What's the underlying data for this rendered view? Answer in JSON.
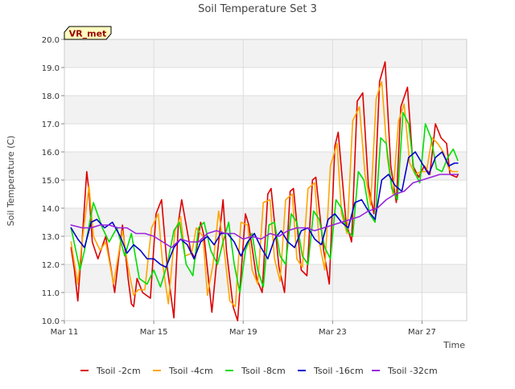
{
  "chart_data": {
    "type": "line",
    "title": "Soil Temperature Set 3",
    "xlabel": "Time",
    "ylabel": "Soil Temperature (C)",
    "site_label": "VR_met",
    "ylim": [
      10.0,
      20.0
    ],
    "xlim": [
      0,
      18
    ],
    "yticks": [
      "10.0",
      "11.0",
      "12.0",
      "13.0",
      "14.0",
      "15.0",
      "16.0",
      "17.0",
      "18.0",
      "19.0",
      "20.0"
    ],
    "xticks": [
      {
        "label": "Mar 11",
        "value": 0
      },
      {
        "label": "Mar 15",
        "value": 4
      },
      {
        "label": "Mar 19",
        "value": 8
      },
      {
        "label": "Mar 23",
        "value": 12
      },
      {
        "label": "Mar 27",
        "value": 16
      }
    ],
    "grid": true,
    "alternating_bands": true,
    "legend_position": "bottom",
    "series": [
      {
        "name": "Tsoil -2cm",
        "color": "#dd0000",
        "x": [
          0.3,
          0.45,
          0.6,
          0.75,
          1.0,
          1.1,
          1.25,
          1.5,
          1.85,
          2.1,
          2.25,
          2.6,
          2.85,
          3.0,
          3.1,
          3.25,
          3.5,
          3.85,
          4.1,
          4.35,
          4.6,
          4.9,
          5.1,
          5.25,
          5.65,
          5.85,
          6.1,
          6.25,
          6.6,
          6.85,
          7.1,
          7.25,
          7.55,
          7.75,
          8.1,
          8.25,
          8.6,
          8.85,
          9.1,
          9.25,
          9.6,
          9.85,
          10.1,
          10.25,
          10.6,
          10.85,
          11.1,
          11.25,
          11.6,
          11.85,
          12.1,
          12.25,
          12.6,
          12.85,
          13.1,
          13.35,
          13.6,
          13.85,
          14.1,
          14.35,
          14.6,
          14.85,
          15.05,
          15.35,
          15.6,
          15.85,
          16.1,
          16.35,
          16.6,
          16.85,
          17.1,
          17.25,
          17.55,
          17.62
        ],
        "y": [
          12.6,
          11.8,
          10.7,
          12.3,
          15.3,
          14.6,
          12.8,
          12.2,
          13.0,
          11.8,
          11.0,
          13.4,
          11.5,
          10.6,
          10.5,
          11.5,
          11.0,
          10.8,
          13.8,
          14.3,
          11.9,
          10.1,
          13.5,
          14.3,
          12.5,
          12.2,
          13.5,
          13.0,
          10.3,
          12.4,
          14.3,
          12.5,
          10.5,
          10.0,
          13.8,
          13.4,
          11.5,
          11.0,
          14.5,
          14.7,
          11.9,
          11.0,
          14.6,
          14.7,
          11.8,
          11.6,
          15.0,
          15.1,
          12.5,
          11.3,
          16.2,
          16.7,
          13.5,
          12.8,
          17.8,
          18.1,
          14.8,
          13.8,
          18.5,
          19.2,
          15.5,
          14.2,
          17.6,
          18.3,
          15.5,
          15.1,
          15.5,
          15.2,
          17.0,
          16.5,
          16.3,
          15.2,
          15.1,
          15.2
        ]
      },
      {
        "name": "Tsoil -4cm",
        "color": "#ffa500",
        "x": [
          0.3,
          0.6,
          0.75,
          1.1,
          1.3,
          1.6,
          1.85,
          2.2,
          2.6,
          2.85,
          3.1,
          3.3,
          3.6,
          3.9,
          4.2,
          4.4,
          4.65,
          4.95,
          5.2,
          5.4,
          5.7,
          5.9,
          6.2,
          6.4,
          6.65,
          6.9,
          7.15,
          7.4,
          7.65,
          7.9,
          8.2,
          8.4,
          8.65,
          8.9,
          9.2,
          9.4,
          9.65,
          9.9,
          10.2,
          10.4,
          10.65,
          10.9,
          11.2,
          11.4,
          11.65,
          11.9,
          12.2,
          12.4,
          12.65,
          12.9,
          13.2,
          13.45,
          13.7,
          13.95,
          14.2,
          14.45,
          14.7,
          14.95,
          15.2,
          15.45,
          15.7,
          15.95,
          16.2,
          16.45,
          16.7,
          16.95,
          17.2,
          17.35,
          17.6
        ],
        "y": [
          12.8,
          11.3,
          12.5,
          14.8,
          13.0,
          12.5,
          12.8,
          11.3,
          13.2,
          11.9,
          10.9,
          11.1,
          11.1,
          13.3,
          13.8,
          12.0,
          10.6,
          13.2,
          13.7,
          12.3,
          12.4,
          13.3,
          13.0,
          10.9,
          12.0,
          13.9,
          12.5,
          10.7,
          10.5,
          13.5,
          13.4,
          11.8,
          11.3,
          14.2,
          14.3,
          12.2,
          11.4,
          14.3,
          14.5,
          12.2,
          11.9,
          14.7,
          14.9,
          12.8,
          11.8,
          15.5,
          16.3,
          13.8,
          13.1,
          17.1,
          17.6,
          15.2,
          14.1,
          17.9,
          18.5,
          15.8,
          14.5,
          17.1,
          17.7,
          15.6,
          15.2,
          15.3,
          15.3,
          16.5,
          16.3,
          16.0,
          15.4,
          15.3,
          15.3
        ]
      },
      {
        "name": "Tsoil -8cm",
        "color": "#00dd00",
        "x": [
          0.3,
          0.7,
          0.9,
          1.3,
          1.7,
          2.0,
          2.35,
          2.7,
          3.0,
          3.35,
          3.7,
          4.0,
          4.3,
          4.6,
          4.9,
          5.15,
          5.45,
          5.75,
          6.0,
          6.25,
          6.55,
          6.85,
          7.1,
          7.35,
          7.6,
          7.85,
          8.1,
          8.4,
          8.65,
          8.9,
          9.15,
          9.4,
          9.65,
          9.9,
          10.15,
          10.4,
          10.65,
          10.9,
          11.15,
          11.4,
          11.65,
          11.9,
          12.15,
          12.4,
          12.65,
          12.9,
          13.15,
          13.4,
          13.65,
          13.9,
          14.15,
          14.4,
          14.65,
          14.9,
          15.15,
          15.4,
          15.65,
          15.9,
          16.15,
          16.4,
          16.65,
          16.9,
          17.15,
          17.4,
          17.6
        ],
        "y": [
          13.3,
          11.8,
          12.5,
          14.2,
          13.3,
          12.8,
          13.3,
          12.3,
          13.1,
          11.5,
          11.3,
          11.8,
          11.2,
          12.0,
          13.2,
          13.5,
          12.0,
          11.6,
          13.3,
          13.5,
          12.5,
          12.0,
          12.8,
          13.5,
          12.0,
          11.0,
          12.5,
          13.1,
          11.8,
          11.2,
          13.4,
          13.5,
          12.3,
          12.0,
          13.8,
          13.5,
          12.3,
          12.0,
          13.9,
          13.6,
          12.6,
          12.2,
          14.3,
          14.0,
          13.2,
          13.0,
          15.3,
          15.0,
          13.8,
          13.5,
          16.5,
          16.3,
          14.7,
          14.3,
          17.4,
          17.0,
          15.3,
          14.9,
          17.0,
          16.5,
          15.4,
          15.3,
          15.8,
          16.1,
          15.7
        ]
      },
      {
        "name": "Tsoil -16cm",
        "color": "#0000cc",
        "x": [
          0.3,
          0.6,
          0.9,
          1.2,
          1.45,
          1.8,
          2.15,
          2.5,
          2.8,
          3.1,
          3.4,
          3.7,
          4.0,
          4.3,
          4.55,
          4.9,
          5.2,
          5.5,
          5.8,
          6.1,
          6.4,
          6.7,
          7.0,
          7.3,
          7.6,
          7.9,
          8.2,
          8.5,
          8.8,
          9.1,
          9.4,
          9.7,
          10.0,
          10.3,
          10.6,
          10.9,
          11.2,
          11.5,
          11.8,
          12.1,
          12.4,
          12.7,
          13.0,
          13.3,
          13.6,
          13.9,
          14.2,
          14.5,
          14.8,
          15.1,
          15.4,
          15.7,
          16.0,
          16.3,
          16.6,
          16.9,
          17.2,
          17.45,
          17.6
        ],
        "y": [
          13.3,
          12.9,
          12.6,
          13.5,
          13.6,
          13.3,
          13.5,
          13.0,
          12.4,
          12.7,
          12.5,
          12.2,
          12.2,
          12.0,
          11.9,
          12.6,
          12.9,
          12.7,
          12.2,
          12.8,
          13.0,
          12.7,
          13.1,
          13.1,
          12.8,
          12.3,
          12.8,
          13.1,
          12.6,
          12.2,
          12.9,
          13.2,
          12.8,
          12.6,
          13.2,
          13.3,
          12.9,
          12.7,
          13.6,
          13.8,
          13.5,
          13.3,
          14.2,
          14.3,
          13.9,
          13.6,
          15.0,
          15.2,
          14.8,
          14.6,
          15.8,
          16.0,
          15.6,
          15.2,
          15.8,
          16.0,
          15.5,
          15.6,
          15.6
        ]
      },
      {
        "name": "Tsoil -32cm",
        "color": "#9922dd",
        "x": [
          0.3,
          0.8,
          1.2,
          1.6,
          2.0,
          2.4,
          2.8,
          3.2,
          3.6,
          4.0,
          4.4,
          4.8,
          5.2,
          5.6,
          6.0,
          6.4,
          6.8,
          7.2,
          7.6,
          8.0,
          8.4,
          8.8,
          9.2,
          9.6,
          10.0,
          10.4,
          10.8,
          11.2,
          11.6,
          12.0,
          12.4,
          12.8,
          13.2,
          13.6,
          14.0,
          14.4,
          14.8,
          15.2,
          15.6,
          16.0,
          16.4,
          16.8,
          17.2,
          17.6
        ],
        "y": [
          13.4,
          13.3,
          13.3,
          13.4,
          13.4,
          13.3,
          13.3,
          13.1,
          13.1,
          13.0,
          12.8,
          12.6,
          12.9,
          12.8,
          12.8,
          13.1,
          13.2,
          13.1,
          13.1,
          12.9,
          13.0,
          12.9,
          13.1,
          13.0,
          13.2,
          13.3,
          13.3,
          13.2,
          13.3,
          13.4,
          13.5,
          13.6,
          13.7,
          13.9,
          14.0,
          14.3,
          14.5,
          14.6,
          14.9,
          15.0,
          15.1,
          15.2,
          15.2,
          15.2
        ]
      }
    ]
  }
}
